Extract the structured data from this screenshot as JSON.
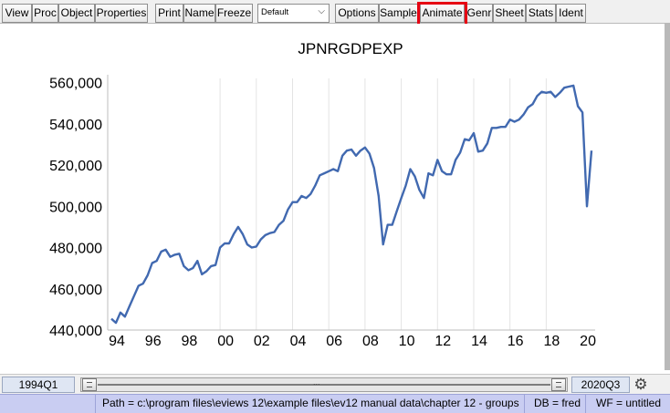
{
  "toolbar": {
    "buttons": [
      {
        "label": "View"
      },
      {
        "label": "Proc"
      },
      {
        "label": "Object"
      },
      {
        "label": "Properties"
      },
      {
        "label": "Print"
      },
      {
        "label": "Name"
      },
      {
        "label": "Freeze"
      },
      {
        "label": "Options"
      },
      {
        "label": "Sample"
      },
      {
        "label": "Animate"
      },
      {
        "label": "Genr"
      },
      {
        "label": "Sheet"
      },
      {
        "label": "Stats"
      },
      {
        "label": "Ident"
      }
    ],
    "template_select": {
      "value": "Default"
    },
    "highlighted_button": "Animate"
  },
  "chart_data": {
    "type": "line",
    "title": "JPNRGDPEXP",
    "xlabel": "",
    "ylabel": "",
    "x_tick_labels": [
      "94",
      "96",
      "98",
      "00",
      "02",
      "04",
      "06",
      "08",
      "10",
      "12",
      "14",
      "16",
      "18",
      "20"
    ],
    "y_ticks": [
      440000,
      460000,
      480000,
      500000,
      520000,
      540000,
      560000
    ],
    "y_tick_labels": [
      "440,000",
      "460,000",
      "480,000",
      "500,000",
      "520,000",
      "540,000",
      "560,000"
    ],
    "ylim": [
      440000,
      562000
    ],
    "grid": "vertical",
    "color": "#4169b0",
    "series": [
      {
        "values": [
          445500,
          443500,
          448500,
          446500,
          451500,
          456500,
          461500,
          462500,
          466500,
          472500,
          473500,
          478000,
          479000,
          475500,
          476500,
          477000,
          471000,
          469000,
          470000,
          473500,
          467000,
          468500,
          471000,
          471500,
          480000,
          482000,
          482000,
          486500,
          490000,
          486500,
          481500,
          480000,
          480500,
          484000,
          486000,
          487000,
          487500,
          491000,
          493000,
          498500,
          502000,
          502000,
          505000,
          504000,
          506000,
          510000,
          515000,
          516000,
          517000,
          518000,
          517000,
          524500,
          527000,
          527500,
          524500,
          527000,
          528500,
          525500,
          518500,
          505000,
          481500,
          491000,
          491000,
          497500,
          504000,
          510000,
          518000,
          514500,
          508000,
          504000,
          516000,
          515000,
          522500,
          517000,
          515500,
          515500,
          522500,
          526000,
          532500,
          532000,
          535500,
          526500,
          527000,
          530500,
          538000,
          538000,
          538500,
          538500,
          542000,
          541000,
          542000,
          544500,
          548000,
          549500,
          553500,
          555500,
          555000,
          555500,
          553000,
          555000,
          557500,
          558000,
          558500,
          548500,
          545500,
          500000,
          527000
        ]
      }
    ]
  },
  "range": {
    "start": "1994Q1",
    "end": "2020Q3",
    "slider_mid_label": "..."
  },
  "status": {
    "path": "Path = c:\\program files\\eviews 12\\example files\\ev12 manual data\\chapter 12 - groups",
    "db": "DB = fred",
    "wf": "WF = untitled"
  }
}
